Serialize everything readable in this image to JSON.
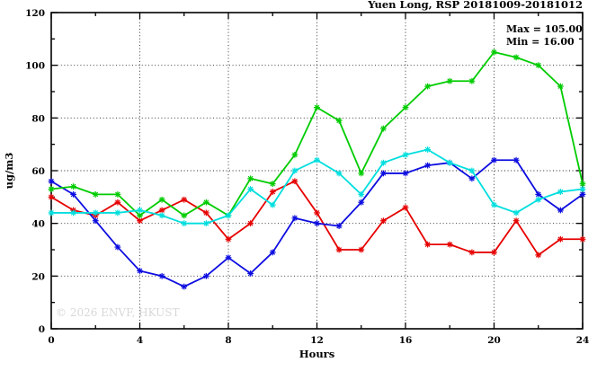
{
  "title": "Yuen Long, RSP 20181009-20181012",
  "legend": {
    "max_label": "Max = 105.00",
    "min_label": "Min =  16.00"
  },
  "watermark": "© 2026 ENVF, HKUST",
  "axes": {
    "xlabel": "Hours",
    "ylabel": "ug/m3",
    "x_tick_labels": [
      "0",
      "4",
      "8",
      "12",
      "16",
      "20",
      "24"
    ],
    "y_tick_labels": [
      "0",
      "20",
      "40",
      "60",
      "80",
      "100",
      "120"
    ]
  },
  "chart_data": {
    "type": "line",
    "title": "Yuen Long, RSP 20181009-20181012",
    "xlabel": "Hours",
    "ylabel": "ug/m3",
    "xlim": [
      0,
      24
    ],
    "ylim": [
      0,
      120
    ],
    "xticks_major": [
      0,
      4,
      8,
      12,
      16,
      20,
      24
    ],
    "xticks_minor": [
      2,
      6,
      10,
      14,
      18,
      22
    ],
    "yticks_major": [
      0,
      20,
      40,
      60,
      80,
      100,
      120
    ],
    "yticks_minor": [
      10,
      30,
      50,
      70,
      90,
      110
    ],
    "grid": true,
    "legend_position": "top-right-inside",
    "annotations": {
      "max": "Max = 105.00",
      "min": "Min =  16.00"
    },
    "x": [
      0,
      1,
      2,
      3,
      4,
      5,
      6,
      7,
      8,
      9,
      10,
      11,
      12,
      13,
      14,
      15,
      16,
      17,
      18,
      19,
      20,
      21,
      22,
      23,
      24
    ],
    "series": [
      {
        "name": "red-series",
        "color": "#e60000",
        "values": [
          50,
          45,
          43,
          48,
          41,
          45,
          49,
          44,
          34,
          40,
          52,
          56,
          44,
          30,
          30,
          41,
          46,
          32,
          32,
          29,
          29,
          41,
          28,
          34,
          34
        ]
      },
      {
        "name": "blue-series",
        "color": "#0d0de0",
        "values": [
          56,
          51,
          41,
          31,
          22,
          20,
          16,
          20,
          27,
          21,
          29,
          42,
          40,
          39,
          48,
          59,
          59,
          62,
          63,
          57,
          64,
          64,
          51,
          45,
          51
        ]
      },
      {
        "name": "green-series",
        "color": "#00cc00",
        "values": [
          53,
          54,
          51,
          51,
          43,
          49,
          43,
          48,
          43,
          57,
          55,
          66,
          84,
          79,
          59,
          76,
          84,
          92,
          94,
          94,
          105,
          103,
          100,
          92,
          55
        ]
      },
      {
        "name": "cyan-series",
        "color": "#00dede",
        "values": [
          44,
          44,
          44,
          44,
          45,
          43,
          40,
          40,
          43,
          53,
          47,
          60,
          64,
          59,
          51,
          63,
          66,
          68,
          63,
          60,
          47,
          44,
          49,
          52,
          53
        ]
      }
    ]
  },
  "colors": {
    "axis": "#000000",
    "grid": "#222222",
    "watermark": "#d8d8d8",
    "background": "#ffffff"
  }
}
